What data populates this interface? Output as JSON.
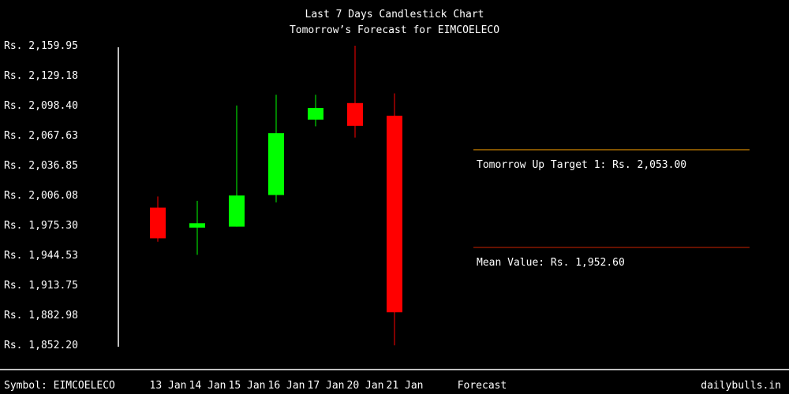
{
  "chart_data": {
    "type": "candlestick",
    "title": "Last 7 Days Candlestick Chart",
    "subtitle": "Tomorrow’s Forecast for EIMCOELECO",
    "y_tick_labels": [
      "Rs. 2,159.95",
      "Rs. 2,129.18",
      "Rs. 2,098.40",
      "Rs. 2,067.63",
      "Rs. 2,036.85",
      "Rs. 2,006.08",
      "Rs. 1,975.30",
      "Rs. 1,944.53",
      "Rs. 1,913.75",
      "Rs. 1,882.98",
      "Rs. 1,852.20"
    ],
    "ylim": [
      1852.2,
      2159.95
    ],
    "categories": [
      "13 Jan",
      "14 Jan",
      "15 Jan",
      "16 Jan",
      "17 Jan",
      "20 Jan",
      "21 Jan"
    ],
    "candles": [
      {
        "date": "13 Jan",
        "open": 1993.5,
        "high": 2005.0,
        "low": 1958.5,
        "close": 1962.0
      },
      {
        "date": "14 Jan",
        "open": 1973.0,
        "high": 2000.5,
        "low": 1945.0,
        "close": 1977.5
      },
      {
        "date": "15 Jan",
        "open": 1974.0,
        "high": 2098.5,
        "low": 1974.0,
        "close": 2006.0
      },
      {
        "date": "16 Jan",
        "open": 2006.5,
        "high": 2109.5,
        "low": 1999.0,
        "close": 2070.0
      },
      {
        "date": "17 Jan",
        "open": 2084.0,
        "high": 2109.5,
        "low": 2077.0,
        "close": 2096.0
      },
      {
        "date": "20 Jan",
        "open": 2101.0,
        "high": 2160.0,
        "low": 2065.5,
        "close": 2077.5
      },
      {
        "date": "21 Jan",
        "open": 2088.0,
        "high": 2111.0,
        "low": 1852.0,
        "close": 1886.0
      }
    ],
    "up_color": "#00ff00",
    "down_color": "#ff0000",
    "forecast_label": "Forecast",
    "annotations": [
      {
        "label": "Tomorrow Up Target 1: Rs. 2,053.00",
        "value": 2053.0,
        "line_color": "#ffa500"
      },
      {
        "label": "Mean Value: Rs. 1,952.60",
        "value": 1952.6,
        "line_color": "#cc2200"
      }
    ]
  },
  "footer": {
    "symbol": "Symbol: EIMCOELECO",
    "site": "dailybulls.in"
  },
  "colors": {
    "background": "#000000",
    "text": "#ffffff",
    "axis": "#ffffff"
  }
}
